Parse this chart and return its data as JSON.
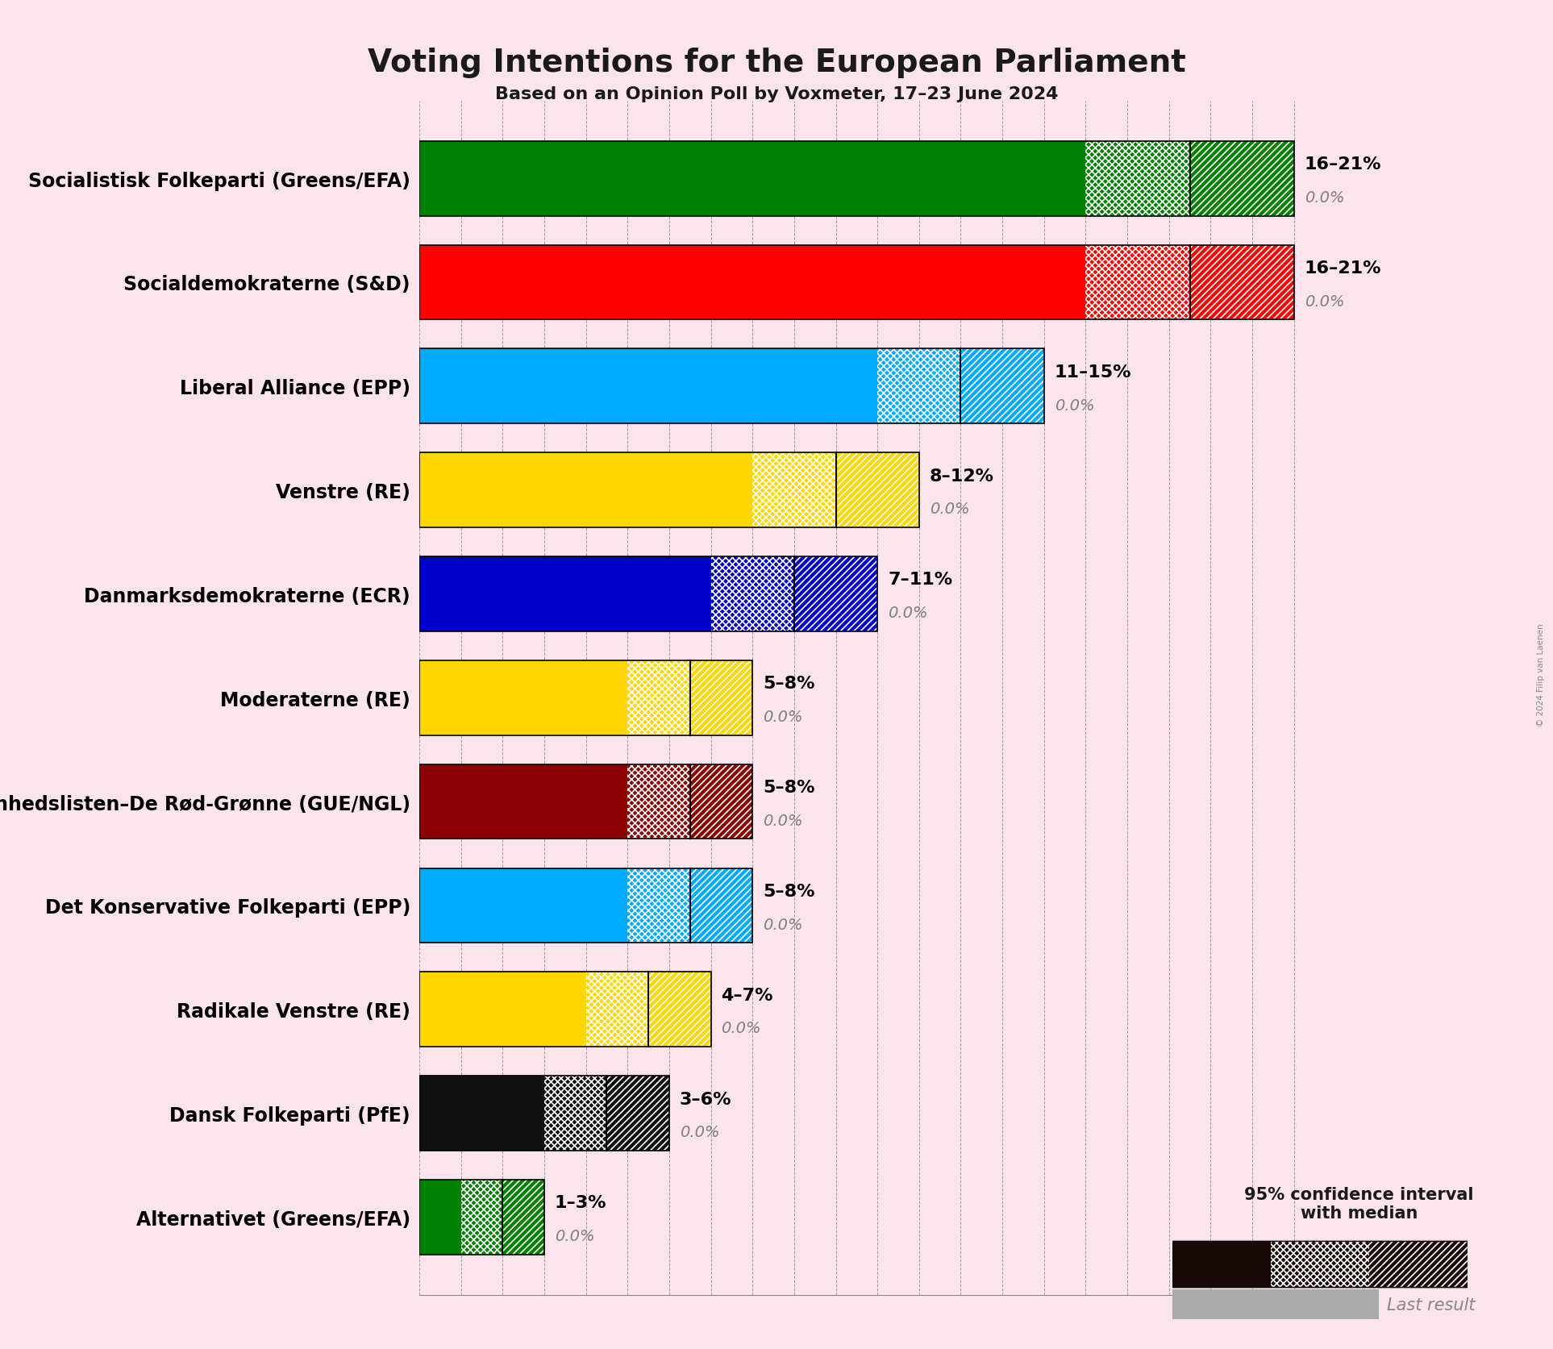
{
  "title": "Voting Intentions for the European Parliament",
  "subtitle": "Based on an Opinion Poll by Voxmeter, 17–23 June 2024",
  "copyright": "© 2024 Filip van Laenen",
  "background_color": "#fce4ec",
  "parties": [
    "Socialistisk Folkeparti (Greens/EFA)",
    "Socialdemokraterne (S&D)",
    "Liberal Alliance (EPP)",
    "Venstre (RE)",
    "Danmarksdemokraterne (ECR)",
    "Moderaterne (RE)",
    "Enhedslisten–De Rød-Grønne (GUE/NGL)",
    "Det Konservative Folkeparti (EPP)",
    "Radikale Venstre (RE)",
    "Dansk Folkeparti (PfE)",
    "Alternativet (Greens/EFA)"
  ],
  "bar_low": [
    16,
    16,
    11,
    8,
    7,
    5,
    5,
    5,
    4,
    3,
    1
  ],
  "bar_median": [
    18.5,
    18.5,
    13,
    10,
    9,
    6.5,
    6.5,
    6.5,
    5.5,
    4.5,
    2
  ],
  "bar_high": [
    21,
    21,
    15,
    12,
    11,
    8,
    8,
    8,
    7,
    6,
    3
  ],
  "last_result": [
    0.0,
    0.0,
    0.0,
    0.0,
    0.0,
    0.0,
    0.0,
    0.0,
    0.0,
    0.0,
    0.0
  ],
  "range_labels": [
    "16–21%",
    "16–21%",
    "11–15%",
    "8–12%",
    "7–11%",
    "5–8%",
    "5–8%",
    "5–8%",
    "4–7%",
    "3–6%",
    "1–3%"
  ],
  "colors": [
    "#008000",
    "#ff0000",
    "#00aaff",
    "#ffd700",
    "#0000cc",
    "#ffd700",
    "#8b0000",
    "#00aaff",
    "#ffd700",
    "#111111",
    "#008000"
  ],
  "xlim_max": 22,
  "bar_height": 0.72,
  "ylabel_fontsize": 17,
  "title_fontsize": 28,
  "subtitle_fontsize": 16,
  "annotation_fontsize": 16,
  "legend_fontsize": 15
}
